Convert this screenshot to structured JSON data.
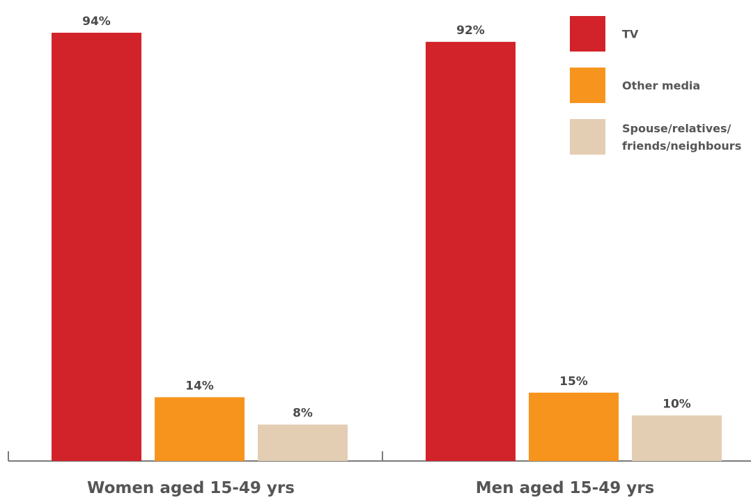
{
  "chart_data": {
    "type": "bar",
    "categories": [
      "Women aged 15-49 yrs",
      "Men aged 15-49 yrs"
    ],
    "series": [
      {
        "name": "TV",
        "values": [
          94,
          92
        ],
        "labels": [
          "94%",
          "92%"
        ],
        "color": "#d2232a"
      },
      {
        "name": "Other media",
        "values": [
          14,
          15
        ],
        "labels": [
          "14%",
          "15%"
        ],
        "color": "#f7941d"
      },
      {
        "name": "Spouse/relatives/\nfriends/neighbours",
        "values": [
          8,
          10
        ],
        "labels": [
          "8%",
          "10%"
        ],
        "color": "#e3cdb3"
      }
    ],
    "unit": "%",
    "ylim": [
      0,
      100
    ],
    "grid": false,
    "legend_position": "top-right",
    "xlabel": "",
    "ylabel": "",
    "title": ""
  }
}
